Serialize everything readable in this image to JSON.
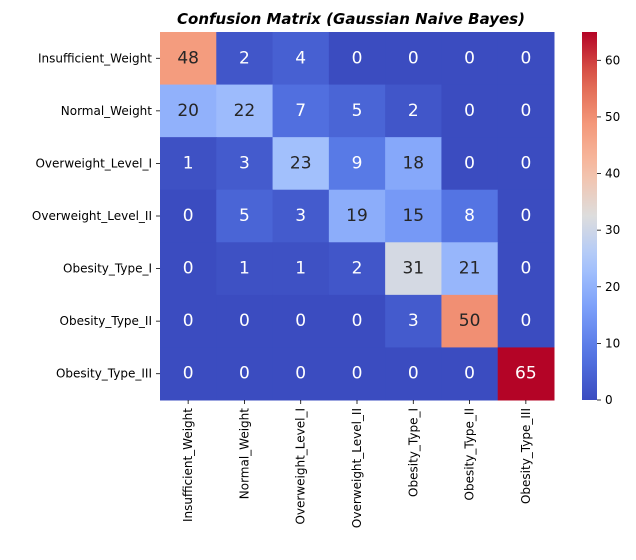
{
  "chart_data": {
    "type": "heatmap",
    "title": "Confusion Matrix (Gaussian Naive Bayes)",
    "xlabel": "",
    "ylabel": "",
    "x_categories": [
      "Insufficient_Weight",
      "Normal_Weight",
      "Overweight_Level_I",
      "Overweight_Level_II",
      "Obesity_Type_I",
      "Obesity_Type_II",
      "Obesity_Type_III"
    ],
    "y_categories": [
      "Insufficient_Weight",
      "Normal_Weight",
      "Overweight_Level_I",
      "Overweight_Level_II",
      "Obesity_Type_I",
      "Obesity_Type_II",
      "Obesity_Type_III"
    ],
    "values": [
      [
        48,
        2,
        4,
        0,
        0,
        0,
        0
      ],
      [
        20,
        22,
        7,
        5,
        2,
        0,
        0
      ],
      [
        1,
        3,
        23,
        9,
        18,
        0,
        0
      ],
      [
        0,
        5,
        3,
        19,
        15,
        8,
        0
      ],
      [
        0,
        1,
        1,
        2,
        31,
        21,
        0
      ],
      [
        0,
        0,
        0,
        0,
        3,
        50,
        0
      ],
      [
        0,
        0,
        0,
        0,
        0,
        0,
        65
      ]
    ],
    "colormap": "coolwarm",
    "colorbar": {
      "min": 0,
      "max": 65,
      "ticks": [
        0,
        10,
        20,
        30,
        40,
        50,
        60
      ]
    },
    "annotations": true
  }
}
